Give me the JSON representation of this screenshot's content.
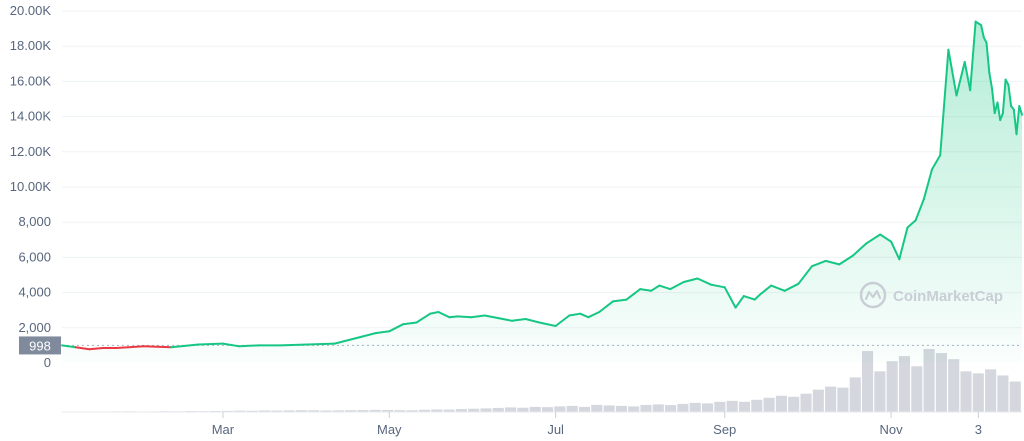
{
  "chart_data": {
    "type": "area",
    "title": "",
    "xlabel": "",
    "ylabel": "",
    "y_ticks": [
      "20.00K",
      "18.00K",
      "16.00K",
      "14.00K",
      "12.00K",
      "10.00K",
      "8,000",
      "6,000",
      "4,000",
      "2,000",
      "0"
    ],
    "y_tick_values": [
      20000,
      18000,
      16000,
      14000,
      12000,
      10000,
      8000,
      6000,
      4000,
      2000,
      0
    ],
    "ylim": [
      0,
      20000
    ],
    "x_ticks": [
      {
        "label": "Mar",
        "day": 59
      },
      {
        "label": "May",
        "day": 120
      },
      {
        "label": "Jul",
        "day": 181
      },
      {
        "label": "Sep",
        "day": 243
      },
      {
        "label": "Nov",
        "day": 304
      },
      {
        "label": "3",
        "day": 336
      }
    ],
    "xlim": [
      0,
      352
    ],
    "reference_line": {
      "label": "998",
      "value": 998
    },
    "colors": {
      "up": "#16c784",
      "down": "#ea3943",
      "area_top": "#16c784",
      "grid": "#eff2f5",
      "ref_label_bg": "#808a9d",
      "volume": "#c5c9d2"
    },
    "series": [
      {
        "x": [
          0,
          5,
          10,
          15,
          20,
          30,
          40,
          50,
          59,
          65,
          72,
          80,
          90,
          100,
          110,
          115,
          120,
          125,
          130,
          135,
          138,
          142,
          145,
          150,
          155,
          160,
          165,
          170,
          175,
          181,
          186,
          190,
          193,
          197,
          202,
          207,
          212,
          216,
          219,
          223,
          228,
          233,
          238,
          243,
          247,
          250,
          254,
          256,
          260,
          265,
          270,
          275,
          280,
          285,
          290,
          295,
          300,
          304,
          307,
          310,
          313,
          316,
          319,
          322,
          325,
          328,
          331,
          333,
          335,
          337,
          338,
          339,
          340,
          341,
          342,
          343,
          344,
          345,
          346,
          347,
          348,
          349,
          350,
          351,
          352
        ],
        "values": [
          998,
          900,
          780,
          850,
          850,
          950,
          900,
          1050,
          1100,
          950,
          1000,
          1000,
          1050,
          1100,
          1500,
          1700,
          1800,
          2200,
          2300,
          2800,
          2900,
          2600,
          2650,
          2600,
          2700,
          2550,
          2400,
          2500,
          2300,
          2100,
          2700,
          2800,
          2600,
          2900,
          3500,
          3600,
          4200,
          4100,
          4400,
          4200,
          4600,
          4800,
          4450,
          4300,
          3150,
          3800,
          3600,
          3900,
          4400,
          4100,
          4500,
          5500,
          5800,
          5600,
          6100,
          6800,
          7300,
          6900,
          5900,
          7700,
          8100,
          9300,
          11000,
          11800,
          17800,
          15200,
          17100,
          15500,
          19400,
          19200,
          18500,
          18200,
          16500,
          15600,
          14200,
          14800,
          13800,
          14200,
          16100,
          15800,
          14600,
          14400,
          13000,
          14600,
          14100
        ]
      }
    ],
    "volume": [
      0.3,
      0.5,
      0.4,
      0.5,
      0.6,
      0.7,
      0.5,
      0.6,
      0.8,
      0.7,
      0.9,
      0.8,
      1,
      1.1,
      1.3,
      1.2,
      1.5,
      1.4,
      1.6,
      1.8,
      1.7,
      1.5,
      1.6,
      1.8,
      1.9,
      2.1,
      2,
      1.8,
      1.7,
      2.2,
      2.5,
      2.4,
      2.9,
      3.2,
      3.5,
      4,
      4.5,
      4.2,
      5,
      4.8,
      5.5,
      6,
      5,
      7,
      6.5,
      6,
      5.5,
      7,
      7.5,
      6.8,
      8,
      9,
      8.5,
      10,
      11,
      10,
      12,
      14,
      16,
      15,
      18,
      22,
      25,
      24,
      34,
      60,
      40,
      50,
      55,
      45,
      62,
      58,
      52,
      40,
      38,
      42,
      36,
      30
    ]
  },
  "watermark": {
    "text": "CoinMarketCap"
  }
}
